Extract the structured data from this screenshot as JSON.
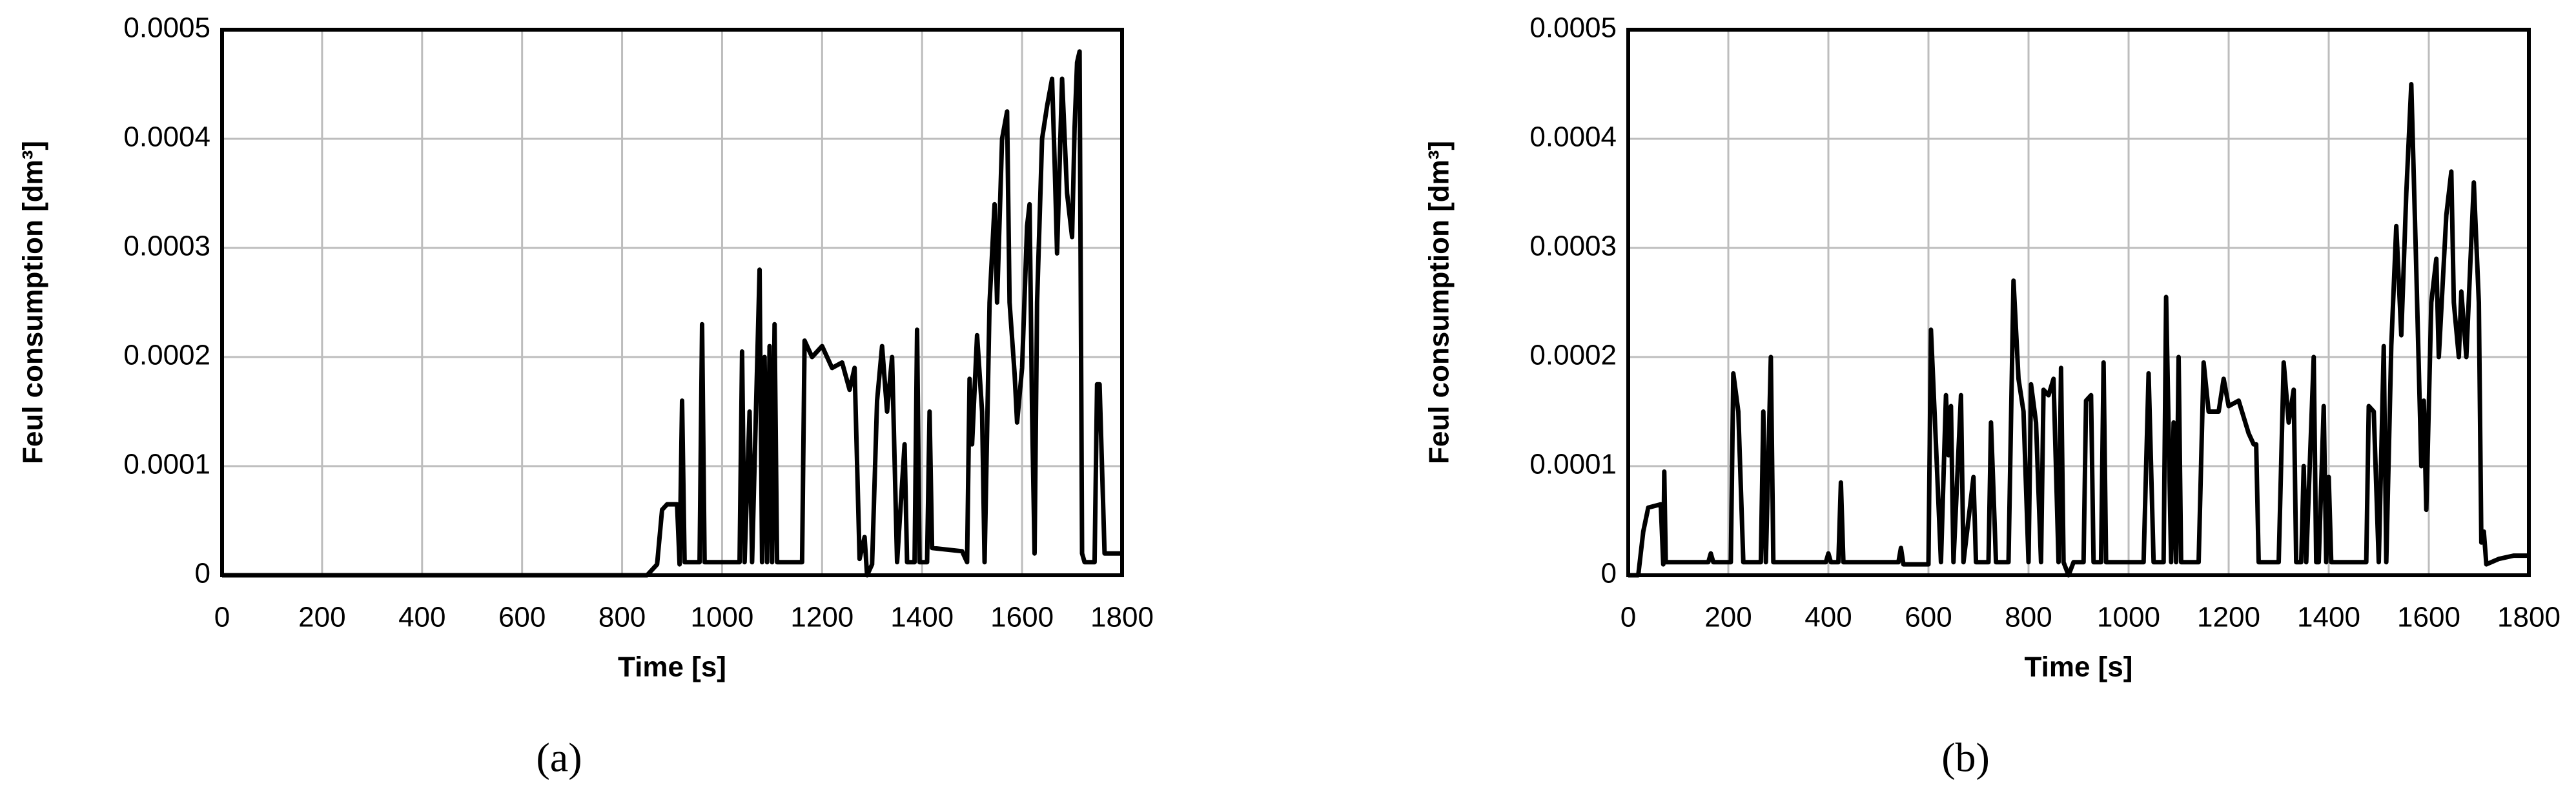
{
  "chart_data": [
    {
      "type": "line",
      "label": "(a)",
      "xlabel": "Time [s]",
      "ylabel": "Feul consumption  [dm³]",
      "xlim": [
        0,
        1800
      ],
      "xticks": [
        0,
        200,
        400,
        600,
        800,
        1000,
        1200,
        1400,
        1600,
        1800
      ],
      "ylim": [
        0,
        0.0005
      ],
      "yticks": [
        0,
        0.0001,
        0.0002,
        0.0003,
        0.0004,
        0.0005
      ],
      "grid": true,
      "series": [
        {
          "color": "#000000",
          "x": [
            0,
            850,
            870,
            880,
            890,
            910,
            915,
            920,
            925,
            955,
            960,
            965,
            1035,
            1040,
            1045,
            1055,
            1060,
            1075,
            1080,
            1085,
            1090,
            1095,
            1100,
            1105,
            1110,
            1160,
            1165,
            1180,
            1200,
            1220,
            1240,
            1255,
            1265,
            1275,
            1285,
            1290,
            1300,
            1310,
            1320,
            1330,
            1340,
            1350,
            1365,
            1370,
            1385,
            1390,
            1395,
            1410,
            1415,
            1420,
            1480,
            1490,
            1495,
            1500,
            1510,
            1520,
            1525,
            1535,
            1545,
            1550,
            1560,
            1570,
            1575,
            1585,
            1590,
            1600,
            1610,
            1615,
            1620,
            1625,
            1630,
            1640,
            1650,
            1660,
            1665,
            1670,
            1680,
            1690,
            1700,
            1705,
            1710,
            1715,
            1720,
            1725,
            1745,
            1750,
            1755,
            1765,
            1800
          ],
          "values": [
            0,
            0,
            1e-05,
            6e-05,
            6.5e-05,
            6.5e-05,
            1e-05,
            0.00016,
            1.2e-05,
            1.2e-05,
            0.00023,
            1.2e-05,
            1.2e-05,
            0.000205,
            1.2e-05,
            0.00015,
            1.2e-05,
            0.00028,
            1.2e-05,
            0.0002,
            1.2e-05,
            0.00021,
            1.2e-05,
            0.00023,
            1.2e-05,
            1.2e-05,
            0.000215,
            0.0002,
            0.00021,
            0.00019,
            0.000195,
            0.00017,
            0.00019,
            1.5e-05,
            3.5e-05,
            0,
            1e-05,
            0.00016,
            0.00021,
            0.00015,
            0.0002,
            1.2e-05,
            0.00012,
            1.2e-05,
            1.2e-05,
            0.000225,
            1.2e-05,
            1.2e-05,
            0.00015,
            2.5e-05,
            2.2e-05,
            1.2e-05,
            0.00018,
            0.00012,
            0.00022,
            0.00015,
            1.2e-05,
            0.00025,
            0.00034,
            0.00025,
            0.0004,
            0.000425,
            0.00025,
            0.000185,
            0.00014,
            0.00019,
            0.00032,
            0.00034,
            0.00015,
            2e-05,
            0.00025,
            0.0004,
            0.00043,
            0.000455,
            0.00038,
            0.000295,
            0.000455,
            0.00035,
            0.00031,
            0.00041,
            0.00047,
            0.00048,
            2e-05,
            1.2e-05,
            1.2e-05,
            0.000175,
            0.000175,
            2e-05,
            2e-05
          ]
        }
      ]
    },
    {
      "type": "line",
      "label": "(b)",
      "xlabel": "Time [s]",
      "ylabel": "Feul consumption  [dm³]",
      "xlim": [
        0,
        1800
      ],
      "xticks": [
        0,
        200,
        400,
        600,
        800,
        1000,
        1200,
        1400,
        1600,
        1800
      ],
      "ylim": [
        0,
        0.0005
      ],
      "yticks": [
        0,
        0.0001,
        0.0002,
        0.0003,
        0.0004,
        0.0005
      ],
      "grid": true,
      "series": [
        {
          "color": "#000000",
          "x": [
            0,
            20,
            30,
            40,
            65,
            70,
            72,
            75,
            160,
            165,
            170,
            205,
            210,
            220,
            230,
            265,
            270,
            275,
            285,
            290,
            395,
            400,
            405,
            420,
            425,
            430,
            540,
            545,
            550,
            600,
            605,
            615,
            625,
            635,
            640,
            645,
            650,
            665,
            670,
            690,
            695,
            720,
            725,
            735,
            760,
            770,
            780,
            790,
            800,
            805,
            815,
            825,
            830,
            840,
            850,
            860,
            865,
            870,
            880,
            890,
            910,
            915,
            925,
            930,
            945,
            950,
            955,
            1030,
            1040,
            1050,
            1070,
            1075,
            1085,
            1090,
            1095,
            1100,
            1105,
            1140,
            1150,
            1160,
            1180,
            1190,
            1200,
            1220,
            1240,
            1250,
            1255,
            1260,
            1300,
            1310,
            1320,
            1330,
            1335,
            1345,
            1350,
            1355,
            1370,
            1375,
            1380,
            1390,
            1395,
            1400,
            1405,
            1475,
            1480,
            1490,
            1500,
            1510,
            1515,
            1525,
            1535,
            1545,
            1555,
            1565,
            1575,
            1585,
            1590,
            1595,
            1605,
            1615,
            1620,
            1635,
            1645,
            1650,
            1660,
            1665,
            1675,
            1690,
            1700,
            1705,
            1710,
            1715,
            1740,
            1770,
            1800
          ],
          "values": [
            0,
            0,
            4e-05,
            6.2e-05,
            6.5e-05,
            1e-05,
            9.5e-05,
            1.2e-05,
            1.2e-05,
            2e-05,
            1.2e-05,
            1.2e-05,
            0.000185,
            0.00015,
            1.2e-05,
            1.2e-05,
            0.00015,
            1.2e-05,
            0.0002,
            1.2e-05,
            1.2e-05,
            2e-05,
            1.2e-05,
            1.2e-05,
            8.5e-05,
            1.2e-05,
            1.2e-05,
            2.5e-05,
            1e-05,
            1e-05,
            0.000225,
            0.00012,
            1.2e-05,
            0.000165,
            0.00011,
            0.000155,
            1.2e-05,
            0.000165,
            1.2e-05,
            9e-05,
            1.2e-05,
            1.2e-05,
            0.00014,
            1.2e-05,
            1.2e-05,
            0.00027,
            0.00018,
            0.00015,
            1.2e-05,
            0.000175,
            0.00014,
            1.2e-05,
            0.00017,
            0.000165,
            0.00018,
            1.2e-05,
            0.00019,
            1.2e-05,
            0,
            1.2e-05,
            1.2e-05,
            0.00016,
            0.000165,
            1.2e-05,
            1.2e-05,
            0.000195,
            1.2e-05,
            1.2e-05,
            0.000185,
            1.2e-05,
            1.2e-05,
            0.000255,
            1.2e-05,
            0.00014,
            1.2e-05,
            0.0002,
            1.2e-05,
            1.2e-05,
            0.000195,
            0.00015,
            0.00015,
            0.00018,
            0.000155,
            0.00016,
            0.00013,
            0.00012,
            0.00012,
            1.2e-05,
            1.2e-05,
            0.000195,
            0.00014,
            0.00017,
            1.2e-05,
            1.2e-05,
            0.0001,
            1.2e-05,
            0.0002,
            1.2e-05,
            1.2e-05,
            0.000155,
            1.2e-05,
            9e-05,
            1.2e-05,
            1.2e-05,
            0.000155,
            0.00015,
            1.2e-05,
            0.00021,
            1.2e-05,
            0.00021,
            0.00032,
            0.00022,
            0.00035,
            0.00045,
            0.00028,
            0.0001,
            0.00016,
            6e-05,
            0.00025,
            0.00029,
            0.0002,
            0.00033,
            0.00037,
            0.00025,
            0.0002,
            0.00026,
            0.0002,
            0.00036,
            0.00025,
            3e-05,
            4e-05,
            1e-05,
            1.5e-05,
            1.8e-05,
            1.8e-05
          ]
        }
      ]
    }
  ]
}
